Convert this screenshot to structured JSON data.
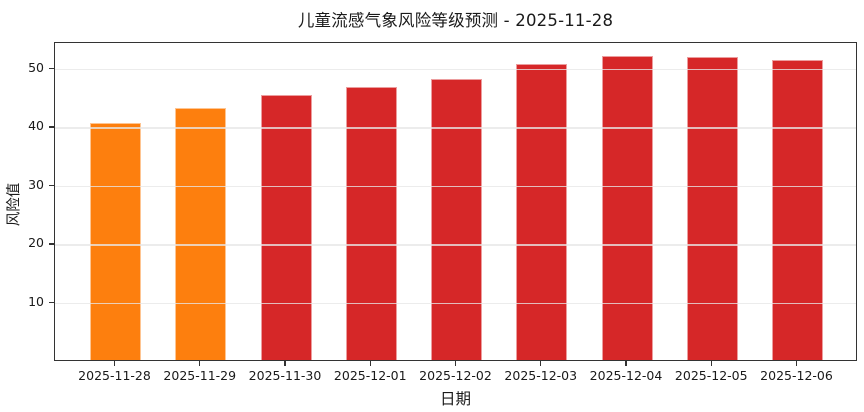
{
  "title": "儿童流感气象风险等级预测 - 2025-11-28",
  "chart_data": {
    "type": "bar",
    "title": "儿童流感气象风险等级预测 - 2025-11-28",
    "xlabel": "日期",
    "ylabel": "风险值",
    "categories": [
      "2025-11-28",
      "2025-11-29",
      "2025-11-30",
      "2025-12-01",
      "2025-12-02",
      "2025-12-03",
      "2025-12-04",
      "2025-12-05",
      "2025-12-06"
    ],
    "values": [
      40.5,
      43.0,
      45.2,
      46.7,
      48.0,
      50.5,
      52.0,
      51.7,
      51.2
    ],
    "bar_colors": [
      "#fd7f0e",
      "#fd7f0e",
      "#d62728",
      "#d62728",
      "#d62728",
      "#d62728",
      "#d62728",
      "#d62728",
      "#d62728"
    ],
    "yticks": [
      10,
      20,
      30,
      40,
      50
    ],
    "ylim": [
      0,
      54.5
    ],
    "grid": "horizontal",
    "legend": "none",
    "colors": {
      "orange_bar": "#fd7f0e",
      "red_bar": "#d62728",
      "gridline": "#efefef",
      "spine": "#333333",
      "text": "#1a1a1a",
      "background": "#ffffff"
    }
  }
}
